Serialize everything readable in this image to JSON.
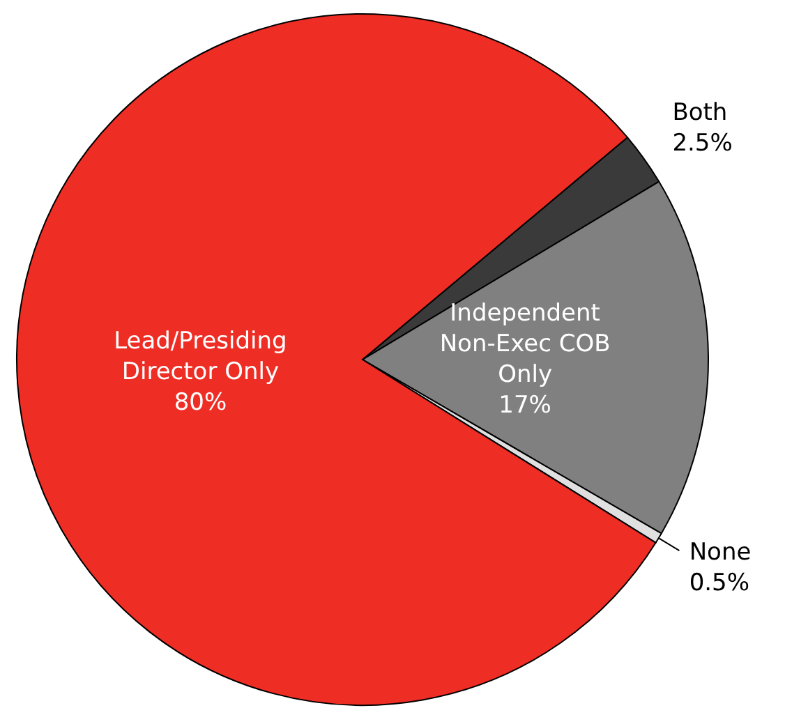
{
  "chart_data": {
    "type": "pie",
    "categories": [
      "Both",
      "Independent Non-Exec COB Only",
      "None",
      "Lead/Presiding Director Only"
    ],
    "values": [
      2.5,
      17,
      0.5,
      80
    ],
    "value_labels": [
      "2.5%",
      "17%",
      "0.5%",
      "80%"
    ],
    "colors": [
      "#3a3a3a",
      "#808080",
      "#e0e0e0",
      "#ee2d24"
    ]
  }
}
